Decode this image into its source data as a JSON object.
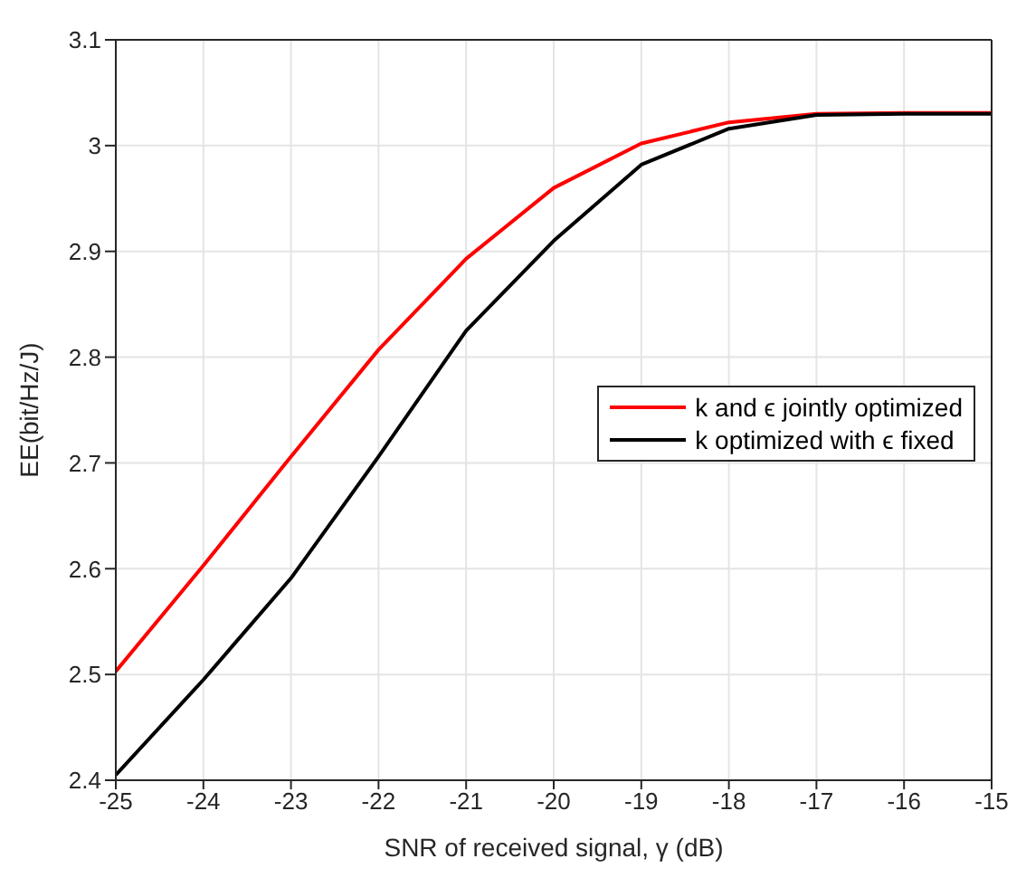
{
  "chart_data": {
    "type": "line",
    "xlabel": "SNR of received signal, γ (dB)",
    "ylabel": "EE(bit/Hz/J)",
    "x": [
      -25,
      -24,
      -23,
      -22,
      -21,
      -20,
      -19,
      -18,
      -17,
      -16,
      -15
    ],
    "series": [
      {
        "name": "k and ϵ jointly optimized",
        "color": "#ff0000",
        "values": [
          2.503,
          2.603,
          2.706,
          2.807,
          2.893,
          2.96,
          3.002,
          3.022,
          3.03,
          3.031,
          3.031
        ]
      },
      {
        "name": "k optimized with ϵ fixed",
        "color": "#000000",
        "values": [
          2.405,
          2.495,
          2.591,
          2.706,
          2.825,
          2.91,
          2.982,
          3.016,
          3.029,
          3.03,
          3.03
        ]
      }
    ],
    "xlim": [
      -25,
      -15
    ],
    "xticks": [
      -25,
      -24,
      -23,
      -22,
      -21,
      -20,
      -19,
      -18,
      -17,
      -16,
      -15
    ],
    "ylim": [
      2.4,
      3.1
    ],
    "yticks": [
      2.4,
      2.5,
      2.6,
      2.7,
      2.8,
      2.9,
      3,
      3.1
    ],
    "grid": true,
    "legend": "right",
    "marker": "none",
    "line_style": "solid"
  }
}
